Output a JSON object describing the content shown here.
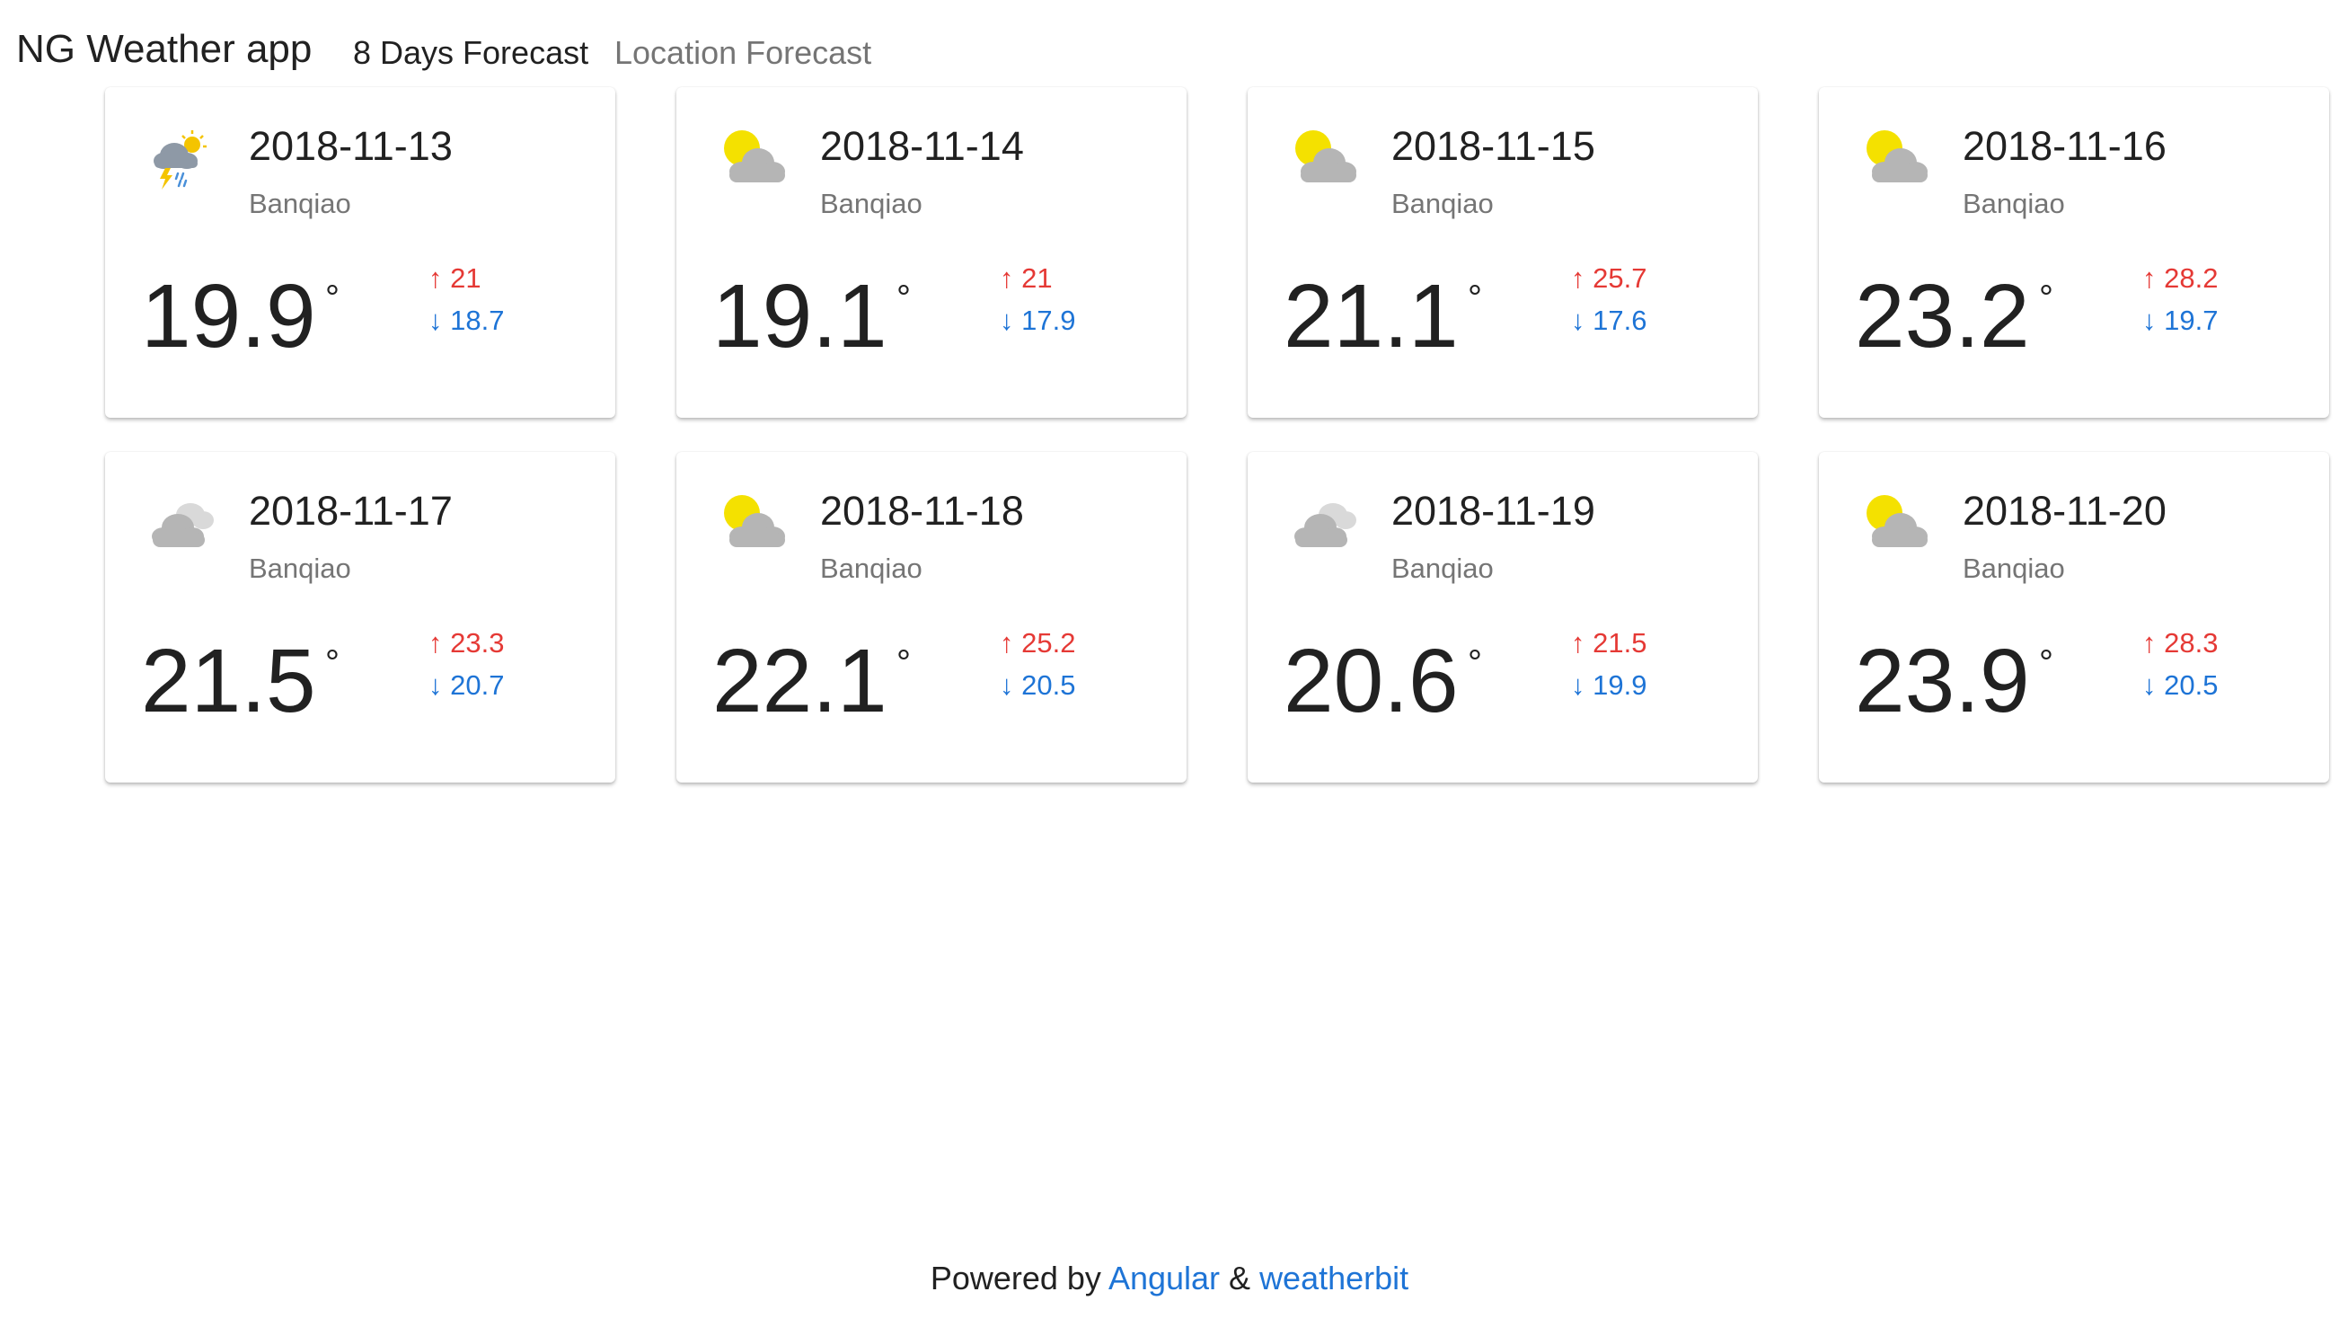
{
  "app": {
    "title": "NG Weather app"
  },
  "nav": {
    "forecast": "8 Days Forecast",
    "location": "Location Forecast"
  },
  "colors": {
    "high": "#e53935",
    "low": "#1e74d6",
    "sun": "#f4e100",
    "cloud": "#b5b5b5"
  },
  "days": [
    {
      "date": "2018-11-13",
      "city": "Banqiao",
      "temp": "19.9",
      "deg": "°",
      "high": "↑ 21",
      "low": "↓ 18.7",
      "icon": "thunderstorm-rain-icon"
    },
    {
      "date": "2018-11-14",
      "city": "Banqiao",
      "temp": "19.1",
      "deg": "°",
      "high": "↑ 21",
      "low": "↓ 17.9",
      "icon": "partly-cloudy-icon"
    },
    {
      "date": "2018-11-15",
      "city": "Banqiao",
      "temp": "21.1",
      "deg": "°",
      "high": "↑ 25.7",
      "low": "↓ 17.6",
      "icon": "partly-cloudy-icon"
    },
    {
      "date": "2018-11-16",
      "city": "Banqiao",
      "temp": "23.2",
      "deg": "°",
      "high": "↑ 28.2",
      "low": "↓ 19.7",
      "icon": "partly-cloudy-icon"
    },
    {
      "date": "2018-11-17",
      "city": "Banqiao",
      "temp": "21.5",
      "deg": "°",
      "high": "↑ 23.3",
      "low": "↓ 20.7",
      "icon": "cloudy-icon"
    },
    {
      "date": "2018-11-18",
      "city": "Banqiao",
      "temp": "22.1",
      "deg": "°",
      "high": "↑ 25.2",
      "low": "↓ 20.5",
      "icon": "partly-cloudy-icon"
    },
    {
      "date": "2018-11-19",
      "city": "Banqiao",
      "temp": "20.6",
      "deg": "°",
      "high": "↑ 21.5",
      "low": "↓ 19.9",
      "icon": "cloudy-icon"
    },
    {
      "date": "2018-11-20",
      "city": "Banqiao",
      "temp": "23.9",
      "deg": "°",
      "high": "↑ 28.3",
      "low": "↓ 20.5",
      "icon": "partly-cloudy-icon"
    }
  ],
  "footer": {
    "prefix": "Powered by ",
    "link1": "Angular",
    "sep": " & ",
    "link2": "weatherbit"
  }
}
